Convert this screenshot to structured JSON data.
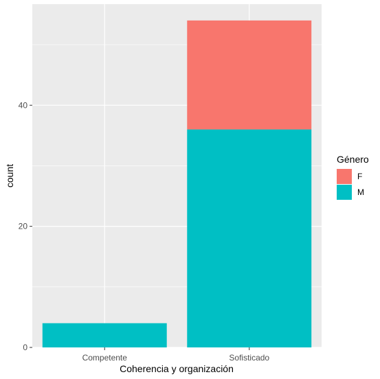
{
  "chart_data": {
    "type": "bar",
    "stacked": true,
    "categories": [
      "Competente",
      "Sofisticado"
    ],
    "series": [
      {
        "name": "F",
        "values": [
          0,
          18
        ],
        "color": "#F8766D"
      },
      {
        "name": "M",
        "values": [
          4,
          36
        ],
        "color": "#00BFC4"
      }
    ],
    "xlabel": "Coherencia y organización",
    "ylabel": "count",
    "ylim": [
      0,
      56.7
    ],
    "yticks": [
      0,
      20,
      40
    ],
    "grid": true,
    "legend": {
      "title": "Género",
      "position": "right"
    },
    "panel_background": "#EBEBEB"
  }
}
